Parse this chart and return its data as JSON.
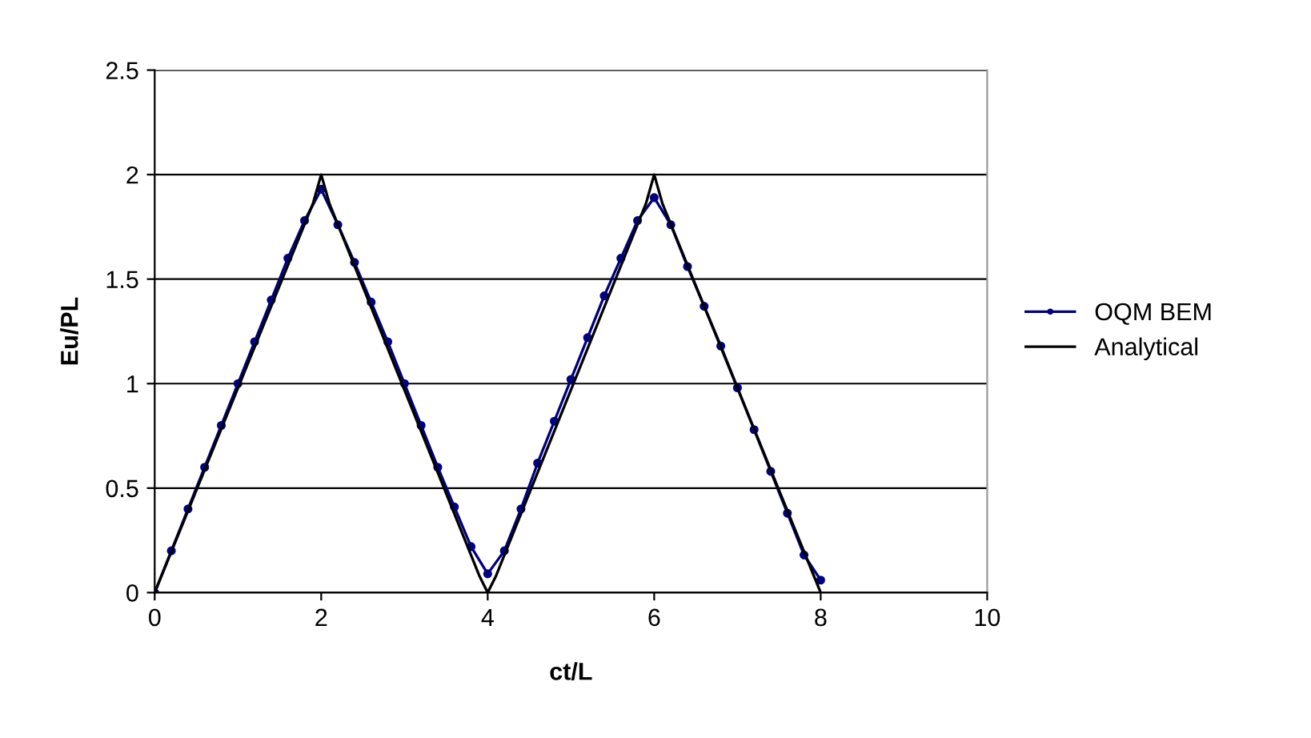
{
  "chart_data": {
    "type": "line",
    "xlabel": "ct/L",
    "ylabel": "Eu/PL",
    "xlim": [
      0,
      10
    ],
    "xticks": [
      0,
      2,
      4,
      6,
      8,
      10
    ],
    "ylim": [
      0,
      2.5
    ],
    "yticks": [
      0,
      0.5,
      1,
      1.5,
      2,
      2.5
    ],
    "grid": "y",
    "legend": "right",
    "series": [
      {
        "name": "OQM BEM",
        "color": "#000080",
        "marker": "circle",
        "x": [
          0,
          0.2,
          0.4,
          0.6,
          0.8,
          1.0,
          1.2,
          1.4,
          1.6,
          1.8,
          2.0,
          2.2,
          2.4,
          2.6,
          2.8,
          3.0,
          3.2,
          3.4,
          3.6,
          3.8,
          4.0,
          4.2,
          4.4,
          4.6,
          4.8,
          5.0,
          5.2,
          5.4,
          5.6,
          5.8,
          6.0,
          6.2,
          6.4,
          6.6,
          6.8,
          7.0,
          7.2,
          7.4,
          7.6,
          7.8,
          8.0
        ],
        "values": [
          0,
          0.2,
          0.4,
          0.6,
          0.8,
          1.0,
          1.2,
          1.4,
          1.6,
          1.78,
          1.93,
          1.76,
          1.58,
          1.39,
          1.2,
          1.0,
          0.8,
          0.6,
          0.41,
          0.22,
          0.09,
          0.2,
          0.4,
          0.62,
          0.82,
          1.02,
          1.22,
          1.42,
          1.6,
          1.78,
          1.89,
          1.76,
          1.56,
          1.37,
          1.18,
          0.98,
          0.78,
          0.58,
          0.38,
          0.18,
          0.06
        ]
      },
      {
        "name": "Analytical",
        "color": "#000000",
        "marker": "none",
        "x": [
          0,
          1.9,
          2.0,
          2.1,
          3.9,
          4.0,
          4.1,
          5.9,
          6.0,
          6.1,
          8.0
        ],
        "values": [
          0,
          1.86,
          2.0,
          1.86,
          0.08,
          0,
          0.08,
          1.86,
          2.0,
          1.86,
          0
        ]
      }
    ]
  }
}
